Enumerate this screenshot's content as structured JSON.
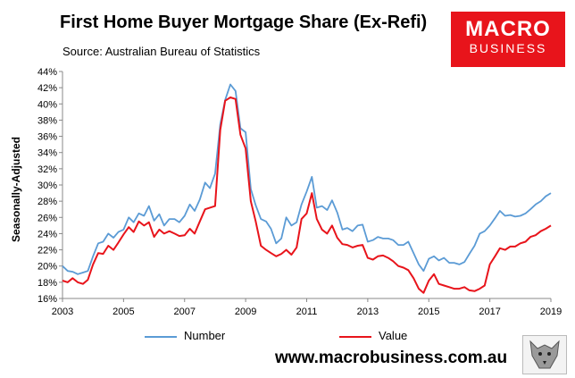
{
  "chart_data": {
    "type": "line",
    "title": "First Home Buyer Mortgage Share (Ex-Refi)",
    "subtitle": "Source: Australian Bureau of Statistics",
    "ylabel": "Seasonally-Adjusted",
    "xlabel": "",
    "ylim": [
      16,
      44
    ],
    "xlim": [
      2003,
      2019
    ],
    "y_ticks": [
      "16%",
      "18%",
      "20%",
      "22%",
      "24%",
      "26%",
      "28%",
      "30%",
      "32%",
      "34%",
      "36%",
      "38%",
      "40%",
      "42%",
      "44%"
    ],
    "x_ticks": [
      "2003",
      "2005",
      "2007",
      "2009",
      "2011",
      "2013",
      "2015",
      "2017",
      "2019"
    ],
    "grid": false,
    "legend_position": "bottom",
    "series": [
      {
        "name": "Number",
        "color": "#5b9bd5",
        "x": [
          2003.0,
          2003.17,
          2003.33,
          2003.5,
          2003.67,
          2003.83,
          2004.0,
          2004.17,
          2004.33,
          2004.5,
          2004.67,
          2004.83,
          2005.0,
          2005.17,
          2005.33,
          2005.5,
          2005.67,
          2005.83,
          2006.0,
          2006.17,
          2006.33,
          2006.5,
          2006.67,
          2006.83,
          2007.0,
          2007.17,
          2007.33,
          2007.5,
          2007.67,
          2007.83,
          2008.0,
          2008.17,
          2008.33,
          2008.5,
          2008.67,
          2008.83,
          2009.0,
          2009.17,
          2009.33,
          2009.5,
          2009.67,
          2009.83,
          2010.0,
          2010.17,
          2010.33,
          2010.5,
          2010.67,
          2010.83,
          2011.0,
          2011.17,
          2011.33,
          2011.5,
          2011.67,
          2011.83,
          2012.0,
          2012.17,
          2012.33,
          2012.5,
          2012.67,
          2012.83,
          2013.0,
          2013.17,
          2013.33,
          2013.5,
          2013.67,
          2013.83,
          2014.0,
          2014.17,
          2014.33,
          2014.5,
          2014.67,
          2014.83,
          2015.0,
          2015.17,
          2015.33,
          2015.5,
          2015.67,
          2015.83,
          2016.0,
          2016.17,
          2016.33,
          2016.5,
          2016.67,
          2016.83,
          2017.0,
          2017.17,
          2017.33,
          2017.5,
          2017.67,
          2017.83,
          2018.0,
          2018.17,
          2018.33,
          2018.5,
          2018.67,
          2018.83,
          2019.0
        ],
        "values": [
          20.0,
          19.4,
          19.3,
          19.0,
          19.2,
          19.4,
          21.2,
          22.8,
          23.0,
          24.0,
          23.5,
          24.2,
          24.5,
          26.0,
          25.4,
          26.5,
          26.2,
          27.4,
          25.6,
          26.4,
          25.0,
          25.8,
          25.8,
          25.4,
          26.2,
          27.6,
          26.8,
          28.2,
          30.3,
          29.6,
          31.4,
          37.5,
          40.5,
          42.4,
          41.6,
          37.0,
          36.5,
          29.5,
          27.5,
          25.8,
          25.5,
          24.6,
          22.8,
          23.4,
          26.0,
          25.0,
          25.4,
          27.6,
          29.2,
          31.0,
          27.2,
          27.4,
          26.9,
          28.1,
          26.6,
          24.5,
          24.7,
          24.3,
          25.0,
          25.1,
          23.0,
          23.2,
          23.6,
          23.4,
          23.4,
          23.2,
          22.6,
          22.6,
          23.0,
          21.6,
          20.2,
          19.4,
          20.9,
          21.2,
          20.7,
          21.0,
          20.4,
          20.4,
          20.2,
          20.5,
          21.5,
          22.5,
          24.0,
          24.3,
          25.0,
          25.9,
          26.8,
          26.2,
          26.3,
          26.1,
          26.2,
          26.5,
          27.0,
          27.6,
          28.0,
          28.6,
          29.0
        ]
      },
      {
        "name": "Value",
        "color": "#e8141b",
        "x": [
          2003.0,
          2003.17,
          2003.33,
          2003.5,
          2003.67,
          2003.83,
          2004.0,
          2004.17,
          2004.33,
          2004.5,
          2004.67,
          2004.83,
          2005.0,
          2005.17,
          2005.33,
          2005.5,
          2005.67,
          2005.83,
          2006.0,
          2006.17,
          2006.33,
          2006.5,
          2006.67,
          2006.83,
          2007.0,
          2007.17,
          2007.33,
          2007.5,
          2007.67,
          2007.83,
          2008.0,
          2008.17,
          2008.33,
          2008.5,
          2008.67,
          2008.83,
          2009.0,
          2009.17,
          2009.33,
          2009.5,
          2009.67,
          2009.83,
          2010.0,
          2010.17,
          2010.33,
          2010.5,
          2010.67,
          2010.83,
          2011.0,
          2011.17,
          2011.33,
          2011.5,
          2011.67,
          2011.83,
          2012.0,
          2012.17,
          2012.33,
          2012.5,
          2012.67,
          2012.83,
          2013.0,
          2013.17,
          2013.33,
          2013.5,
          2013.67,
          2013.83,
          2014.0,
          2014.17,
          2014.33,
          2014.5,
          2014.67,
          2014.83,
          2015.0,
          2015.17,
          2015.33,
          2015.5,
          2015.67,
          2015.83,
          2016.0,
          2016.17,
          2016.33,
          2016.5,
          2016.67,
          2016.83,
          2017.0,
          2017.17,
          2017.33,
          2017.5,
          2017.67,
          2017.83,
          2018.0,
          2018.17,
          2018.33,
          2018.5,
          2018.67,
          2018.83,
          2019.0
        ],
        "values": [
          18.2,
          18.0,
          18.5,
          18.0,
          17.8,
          18.3,
          20.2,
          21.6,
          21.5,
          22.5,
          22.0,
          22.9,
          23.9,
          24.8,
          24.2,
          25.5,
          25.0,
          25.4,
          23.6,
          24.5,
          24.0,
          24.3,
          24.0,
          23.7,
          23.8,
          24.6,
          24.0,
          25.5,
          27.0,
          27.2,
          27.4,
          36.8,
          40.4,
          40.8,
          40.6,
          36.2,
          34.5,
          28.0,
          25.5,
          22.5,
          22.0,
          21.6,
          21.2,
          21.5,
          22.0,
          21.4,
          22.3,
          25.8,
          26.5,
          29.0,
          25.8,
          24.5,
          24.0,
          25.0,
          23.5,
          22.7,
          22.6,
          22.3,
          22.5,
          22.6,
          21.0,
          20.8,
          21.2,
          21.3,
          21.0,
          20.6,
          20.0,
          19.8,
          19.5,
          18.5,
          17.2,
          16.7,
          18.2,
          19.0,
          17.8,
          17.6,
          17.4,
          17.2,
          17.2,
          17.4,
          17.0,
          16.9,
          17.2,
          17.6,
          20.2,
          21.2,
          22.2,
          22.0,
          22.4,
          22.4,
          22.8,
          23.0,
          23.6,
          23.8,
          24.3,
          24.6,
          25.0
        ]
      }
    ]
  },
  "logo": {
    "line1": "MACRO",
    "line2": "BUSINESS"
  },
  "website": "www.macrobusiness.com.au"
}
